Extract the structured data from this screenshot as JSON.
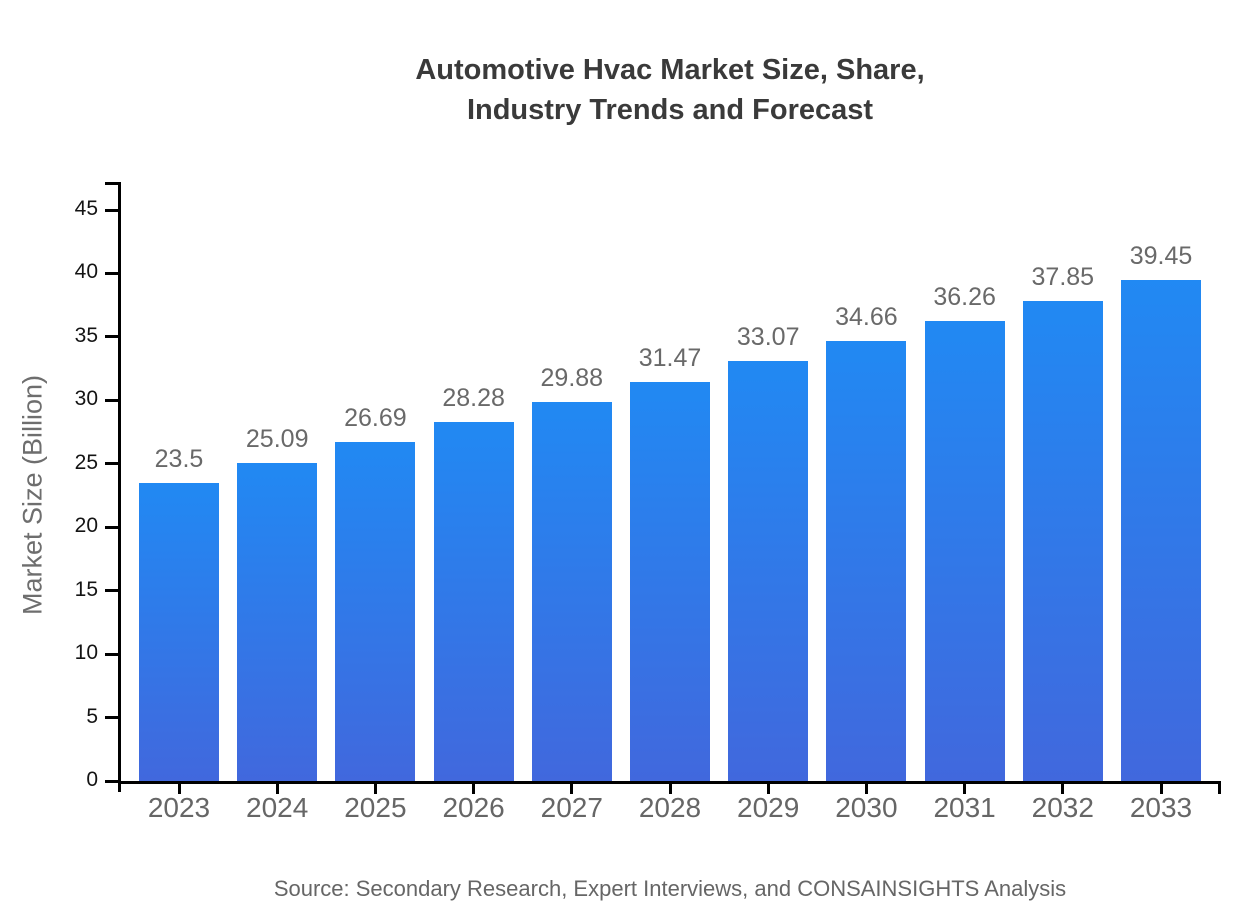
{
  "chart_data": {
    "type": "bar",
    "title": "Automotive Hvac Market Size, Share,\nIndustry Trends and Forecast",
    "ylabel": "Market Size (Billion)",
    "xlabel": "",
    "categories": [
      "2023",
      "2024",
      "2025",
      "2026",
      "2027",
      "2028",
      "2029",
      "2030",
      "2031",
      "2032",
      "2033"
    ],
    "values": [
      23.5,
      25.09,
      26.69,
      28.28,
      29.88,
      31.47,
      33.07,
      34.66,
      36.26,
      37.85,
      39.45
    ],
    "value_labels": [
      "23.5",
      "25.09",
      "26.69",
      "28.28",
      "29.88",
      "31.47",
      "33.07",
      "34.66",
      "36.26",
      "37.85",
      "39.45"
    ],
    "yticks": [
      0,
      5,
      10,
      15,
      20,
      25,
      30,
      35,
      40,
      45
    ],
    "ylim": [
      0,
      47.2
    ],
    "grid": false,
    "legend_position": "none",
    "colors": {
      "bar_gradient_top": "#2189f3",
      "bar_gradient_bottom": "#4168dd",
      "axis": "#000000",
      "y_tick_label": "#141414",
      "category_label": "#666666",
      "value_label": "#696969",
      "axis_title": "#6e6e6e",
      "title": "#3a3a3a"
    }
  },
  "footer": {
    "source": "Source: Secondary Research, Expert Interviews, and CONSAINSIGHTS Analysis",
    "source_color": "#666666"
  }
}
